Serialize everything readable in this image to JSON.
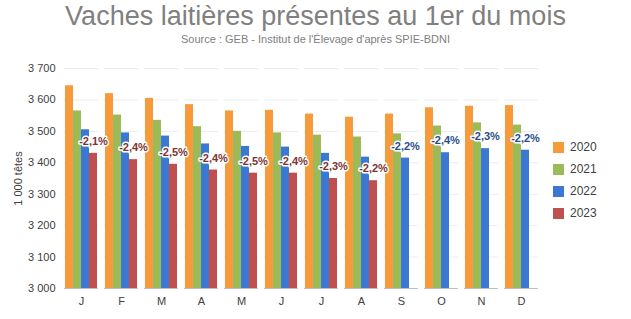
{
  "chart_data": {
    "type": "bar",
    "title": "Vaches laitières présentes au 1er du mois",
    "subtitle": "Source : GEB - Institut de l'Élevage d'après SPIE-BDNI",
    "y_label": "1 000 têtes",
    "categories": [
      "J",
      "F",
      "M",
      "A",
      "M",
      "J",
      "J",
      "A",
      "S",
      "O",
      "N",
      "D"
    ],
    "series": [
      {
        "name": "2020",
        "color": "#f79a3c",
        "values": [
          3645,
          3620,
          3605,
          3585,
          3565,
          3567,
          3555,
          3545,
          3555,
          3575,
          3580,
          3582
        ]
      },
      {
        "name": "2021",
        "color": "#9bbb59",
        "values": [
          3565,
          3552,
          3535,
          3515,
          3500,
          3495,
          3488,
          3482,
          3492,
          3517,
          3527,
          3520
        ]
      },
      {
        "name": "2022",
        "color": "#3a78d3",
        "values": [
          3505,
          3495,
          3485,
          3460,
          3452,
          3450,
          3430,
          3418,
          3415,
          3432,
          3445,
          3440
        ]
      },
      {
        "name": "2023",
        "color": "#c0504d",
        "values": [
          3430,
          3410,
          3395,
          3377,
          3367,
          3367,
          3350,
          3343,
          null,
          null,
          null,
          null
        ]
      }
    ],
    "ylim": [
      3000,
      3700
    ],
    "yticks": [
      {
        "value": 3000,
        "label": "3 000"
      },
      {
        "value": 3100,
        "label": "3 100"
      },
      {
        "value": 3200,
        "label": "3 200"
      },
      {
        "value": 3300,
        "label": "3 300"
      },
      {
        "value": 3400,
        "label": "3 400"
      },
      {
        "value": 3500,
        "label": "3 500"
      },
      {
        "value": 3600,
        "label": "3 600"
      },
      {
        "value": 3700,
        "label": "3 700"
      }
    ],
    "grid": true,
    "legend": "right",
    "annotations": [
      {
        "index": 0,
        "series": "2023",
        "text": "-2,1%"
      },
      {
        "index": 1,
        "series": "2023",
        "text": "-2,4%"
      },
      {
        "index": 2,
        "series": "2023",
        "text": "-2,5%"
      },
      {
        "index": 3,
        "series": "2023",
        "text": "-2,4%"
      },
      {
        "index": 4,
        "series": "2023",
        "text": "-2,5%"
      },
      {
        "index": 5,
        "series": "2023",
        "text": "-2,4%"
      },
      {
        "index": 6,
        "series": "2023",
        "text": "-2,3%"
      },
      {
        "index": 7,
        "series": "2023",
        "text": "-2,2%"
      },
      {
        "index": 8,
        "series": "2022",
        "text": "-2,2%"
      },
      {
        "index": 9,
        "series": "2022",
        "text": "-2,4%"
      },
      {
        "index": 10,
        "series": "2022",
        "text": "-2,3%"
      },
      {
        "index": 11,
        "series": "2022",
        "text": "-2,2%"
      }
    ]
  }
}
